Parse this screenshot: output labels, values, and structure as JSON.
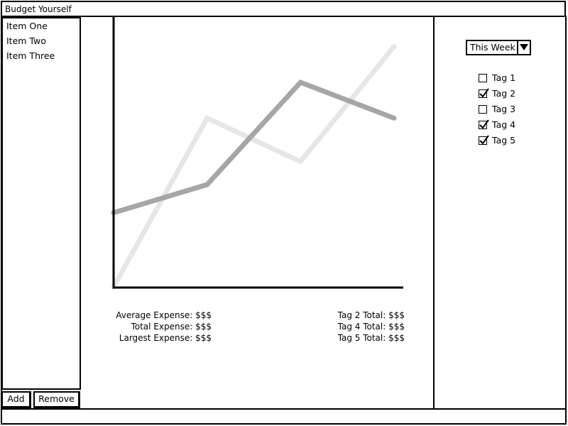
{
  "window": {
    "title": "Budget Yourself"
  },
  "items": [
    {
      "label": "Item One"
    },
    {
      "label": "Item Two"
    },
    {
      "label": "Item Three"
    }
  ],
  "buttons": {
    "add_label": "Add",
    "remove_label": "Remove"
  },
  "range": {
    "selected": "This Week"
  },
  "tags": [
    {
      "label": "Tag 1",
      "checked": false
    },
    {
      "label": "Tag 2",
      "checked": true
    },
    {
      "label": "Tag 3",
      "checked": false
    },
    {
      "label": "Tag 4",
      "checked": true
    },
    {
      "label": "Tag 5",
      "checked": true
    }
  ],
  "stats_left": [
    {
      "text": "Average Expense: $$$"
    },
    {
      "text": "Total Expense: $$$"
    },
    {
      "text": "Largest Expense: $$$"
    }
  ],
  "stats_right": [
    {
      "text": "Tag 2 Total: $$$"
    },
    {
      "text": "Tag 4 Total: $$$"
    },
    {
      "text": "Tag 5 Total: $$$"
    }
  ],
  "chart_data": {
    "type": "line",
    "x": [
      0,
      1,
      2,
      3
    ],
    "ylim": [
      0,
      100
    ],
    "grid": false,
    "series": [
      {
        "values": [
          0,
          66,
          49,
          94
        ],
        "color": "#e6e6e6"
      },
      {
        "values": [
          29,
          40,
          80,
          66
        ],
        "color": "#a6a6a6"
      }
    ]
  }
}
